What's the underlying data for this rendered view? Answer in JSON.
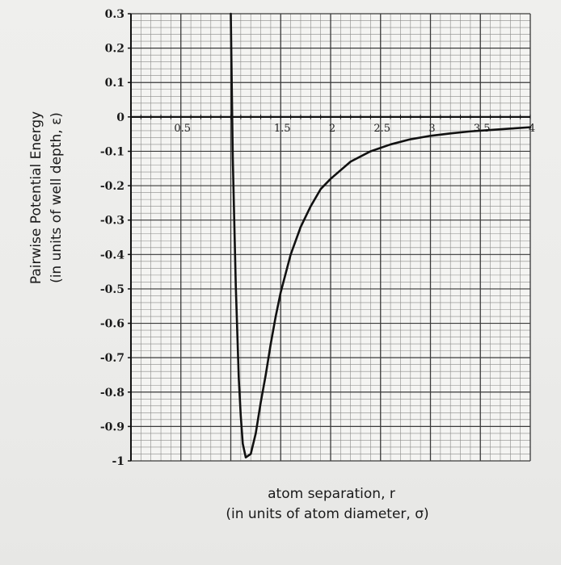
{
  "chart_data": {
    "type": "line",
    "xlabel": "atom separation, r",
    "xlabel_units": "(in units of atom diameter, σ)",
    "ylabel": "Pairwise  Potential Energy",
    "ylabel_units": "(in units of well depth, ε)",
    "xlim": [
      0,
      4
    ],
    "ylim": [
      -1,
      0.3
    ],
    "x_ticks": [
      {
        "value": 0.5,
        "label": "0.5"
      },
      {
        "value": 1.5,
        "label": "1.5"
      },
      {
        "value": 2,
        "label": "2"
      },
      {
        "value": 2.5,
        "label": "2.5"
      },
      {
        "value": 3,
        "label": "3"
      },
      {
        "value": 3.5,
        "label": "3.5"
      },
      {
        "value": 4,
        "label": "4"
      }
    ],
    "y_ticks": [
      {
        "value": 0.3,
        "label": "0.3"
      },
      {
        "value": 0.2,
        "label": "0.2"
      },
      {
        "value": 0.1,
        "label": "0.1"
      },
      {
        "value": 0,
        "label": "0"
      },
      {
        "value": -0.1,
        "label": "-0.1"
      },
      {
        "value": -0.2,
        "label": "-0.2"
      },
      {
        "value": -0.3,
        "label": "-0.3"
      },
      {
        "value": -0.4,
        "label": "-0.4"
      },
      {
        "value": -0.5,
        "label": "-0.5"
      },
      {
        "value": -0.6,
        "label": "-0.6"
      },
      {
        "value": -0.7,
        "label": "-0.7"
      },
      {
        "value": -0.8,
        "label": "-0.8"
      },
      {
        "value": -0.9,
        "label": "-0.9"
      },
      {
        "value": -1,
        "label": "-1"
      }
    ],
    "grid": true,
    "grid_minor_per_major": 5,
    "line_color": "#111111",
    "series": [
      {
        "x": [
          1.0,
          1.02,
          1.05,
          1.08,
          1.1,
          1.12,
          1.15,
          1.2,
          1.25,
          1.3,
          1.35,
          1.4,
          1.45,
          1.5,
          1.6,
          1.7,
          1.8,
          1.9,
          2.0,
          2.2,
          2.4,
          2.6,
          2.8,
          3.0,
          3.2,
          3.4,
          3.6,
          3.8,
          4.0
        ],
        "y": [
          0.3,
          -0.12,
          -0.49,
          -0.76,
          -0.87,
          -0.95,
          -0.99,
          -0.98,
          -0.92,
          -0.83,
          -0.75,
          -0.66,
          -0.58,
          -0.51,
          -0.4,
          -0.32,
          -0.26,
          -0.21,
          -0.18,
          -0.13,
          -0.1,
          -0.08,
          -0.065,
          -0.055,
          -0.048,
          -0.042,
          -0.038,
          -0.034,
          -0.03
        ]
      }
    ]
  }
}
